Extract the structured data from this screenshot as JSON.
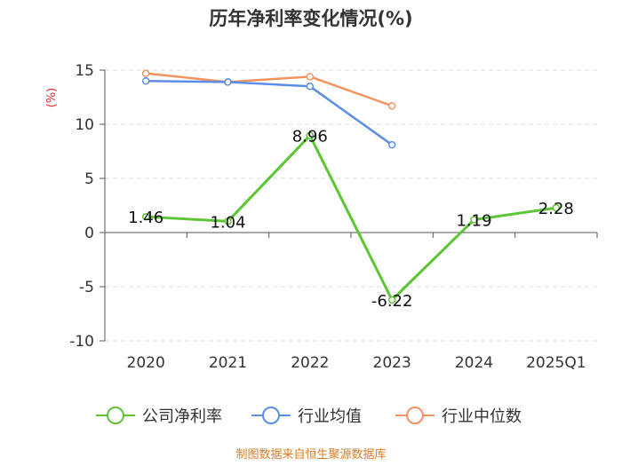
{
  "chart_data": {
    "type": "line",
    "title": "历年净利率变化情况(%)",
    "ylabel": "(%)",
    "xlabel": "",
    "categories": [
      "2020",
      "2021",
      "2022",
      "2023",
      "2024",
      "2025Q1"
    ],
    "ylim": [
      -10,
      15
    ],
    "yticks": [
      15,
      10,
      5,
      0,
      -5,
      -10
    ],
    "series": [
      {
        "name": "公司净利率",
        "color": "#5cc534",
        "values": [
          1.46,
          1.04,
          8.96,
          -6.22,
          1.19,
          2.28
        ],
        "labels": [
          "1.46",
          "1.04",
          "8.96",
          "-6.22",
          "1.19",
          "2.28"
        ]
      },
      {
        "name": "行业均值",
        "color": "#5b8ee6",
        "values": [
          14.0,
          13.9,
          13.5,
          8.1,
          null,
          null
        ]
      },
      {
        "name": "行业中位数",
        "color": "#f5935e",
        "values": [
          14.7,
          13.9,
          14.4,
          11.7,
          null,
          null
        ]
      }
    ],
    "source": "制图数据来自恒生聚源数据库"
  }
}
